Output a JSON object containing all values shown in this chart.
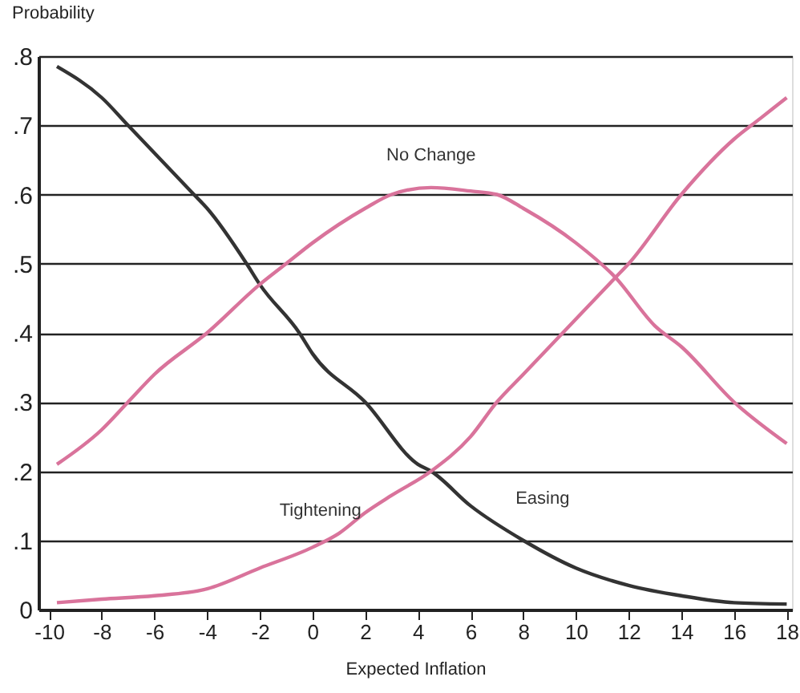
{
  "chart_data": {
    "type": "line",
    "xlabel": "Expected Inflation",
    "ylabel": "Probability",
    "xlim": [
      -10.4,
      18.2
    ],
    "xticks": [
      -10,
      -8,
      -6,
      -4,
      -2,
      0,
      2,
      4,
      6,
      8,
      10,
      12,
      14,
      16,
      18
    ],
    "ylim": [
      0,
      0.8
    ],
    "yticks": [
      {
        "value": 0,
        "label": "0"
      },
      {
        "value": 0.1,
        "label": ".1"
      },
      {
        "value": 0.2,
        "label": ".2"
      },
      {
        "value": 0.3,
        "label": ".3"
      },
      {
        "value": 0.4,
        "label": ".4"
      },
      {
        "value": 0.5,
        "label": ".5"
      },
      {
        "value": 0.6,
        "label": ".6"
      },
      {
        "value": 0.7,
        "label": ".7"
      },
      {
        "value": 0.8,
        "label": ".8"
      }
    ],
    "grid": "y",
    "marker": "none",
    "line_style": "solid",
    "series": [
      {
        "name": "Easing",
        "color": "#333333",
        "x": [
          -9.7,
          -8,
          -7,
          -6,
          -4.5,
          -4,
          -2.5,
          -2,
          -0.5,
          0,
          2,
          4,
          4.5,
          6,
          8,
          10,
          12,
          14,
          16,
          18
        ],
        "values": [
          0.785,
          0.74,
          0.7,
          0.66,
          0.6,
          0.58,
          0.5,
          0.47,
          0.4,
          0.37,
          0.3,
          0.21,
          0.2,
          0.15,
          0.1,
          0.06,
          0.035,
          0.02,
          0.01,
          0.008
        ]
      },
      {
        "name": "No Change",
        "color": "#d9739b",
        "x": [
          -9.7,
          -8,
          -7,
          -6,
          -4,
          -2,
          -1,
          0,
          2,
          3,
          4.5,
          6,
          7,
          8,
          10,
          11.5,
          13,
          14,
          16,
          18
        ],
        "values": [
          0.21,
          0.26,
          0.3,
          0.34,
          0.4,
          0.47,
          0.5,
          0.53,
          0.58,
          0.6,
          0.61,
          0.605,
          0.6,
          0.58,
          0.53,
          0.48,
          0.41,
          0.38,
          0.3,
          0.24
        ]
      },
      {
        "name": "Tightening",
        "color": "#d9739b",
        "x": [
          -9.7,
          -8,
          -6,
          -4,
          -2,
          0,
          1,
          2,
          3,
          4.5,
          6,
          7,
          8,
          10,
          11.5,
          12,
          14,
          16,
          17,
          18
        ],
        "values": [
          0.01,
          0.015,
          0.02,
          0.03,
          0.06,
          0.09,
          0.11,
          0.14,
          0.165,
          0.2,
          0.25,
          0.3,
          0.34,
          0.42,
          0.48,
          0.5,
          0.6,
          0.68,
          0.71,
          0.74
        ]
      }
    ]
  }
}
